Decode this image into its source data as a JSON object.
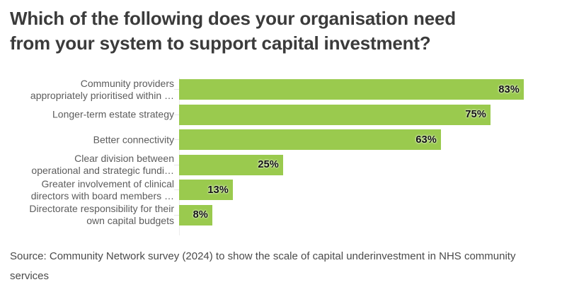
{
  "title": {
    "line1": "Which of the following does your organisation need",
    "line2": "from your system to support capital investment?"
  },
  "chart_data": {
    "type": "bar",
    "orientation": "horizontal",
    "title": "Which of the following does your organisation need from your system to support capital investment?",
    "categories": [
      "Community providers\nappropriately prioritised within …",
      "Longer-term estate strategy",
      "Better connectivity",
      "Clear division between\noperational and strategic fundi…",
      "Greater involvement of clinical\ndirectors with board members …",
      "Directorate responsibility for their\nown capital budgets"
    ],
    "values": [
      83,
      75,
      63,
      25,
      13,
      8
    ],
    "value_labels": [
      "83%",
      "75%",
      "63%",
      "25%",
      "13%",
      "8%"
    ],
    "xlabel": "",
    "ylabel": "",
    "xlim": [
      0,
      83
    ],
    "grid": false,
    "legend": "none",
    "bar_color": "#9aca4e",
    "value_label_color": "#111111",
    "category_label_color": "#5c5c5c",
    "axis_line_color": "#ececec"
  },
  "source": {
    "text": "Source: Community Network survey (2024) to show the scale of capital underinvestment in NHS community services"
  }
}
